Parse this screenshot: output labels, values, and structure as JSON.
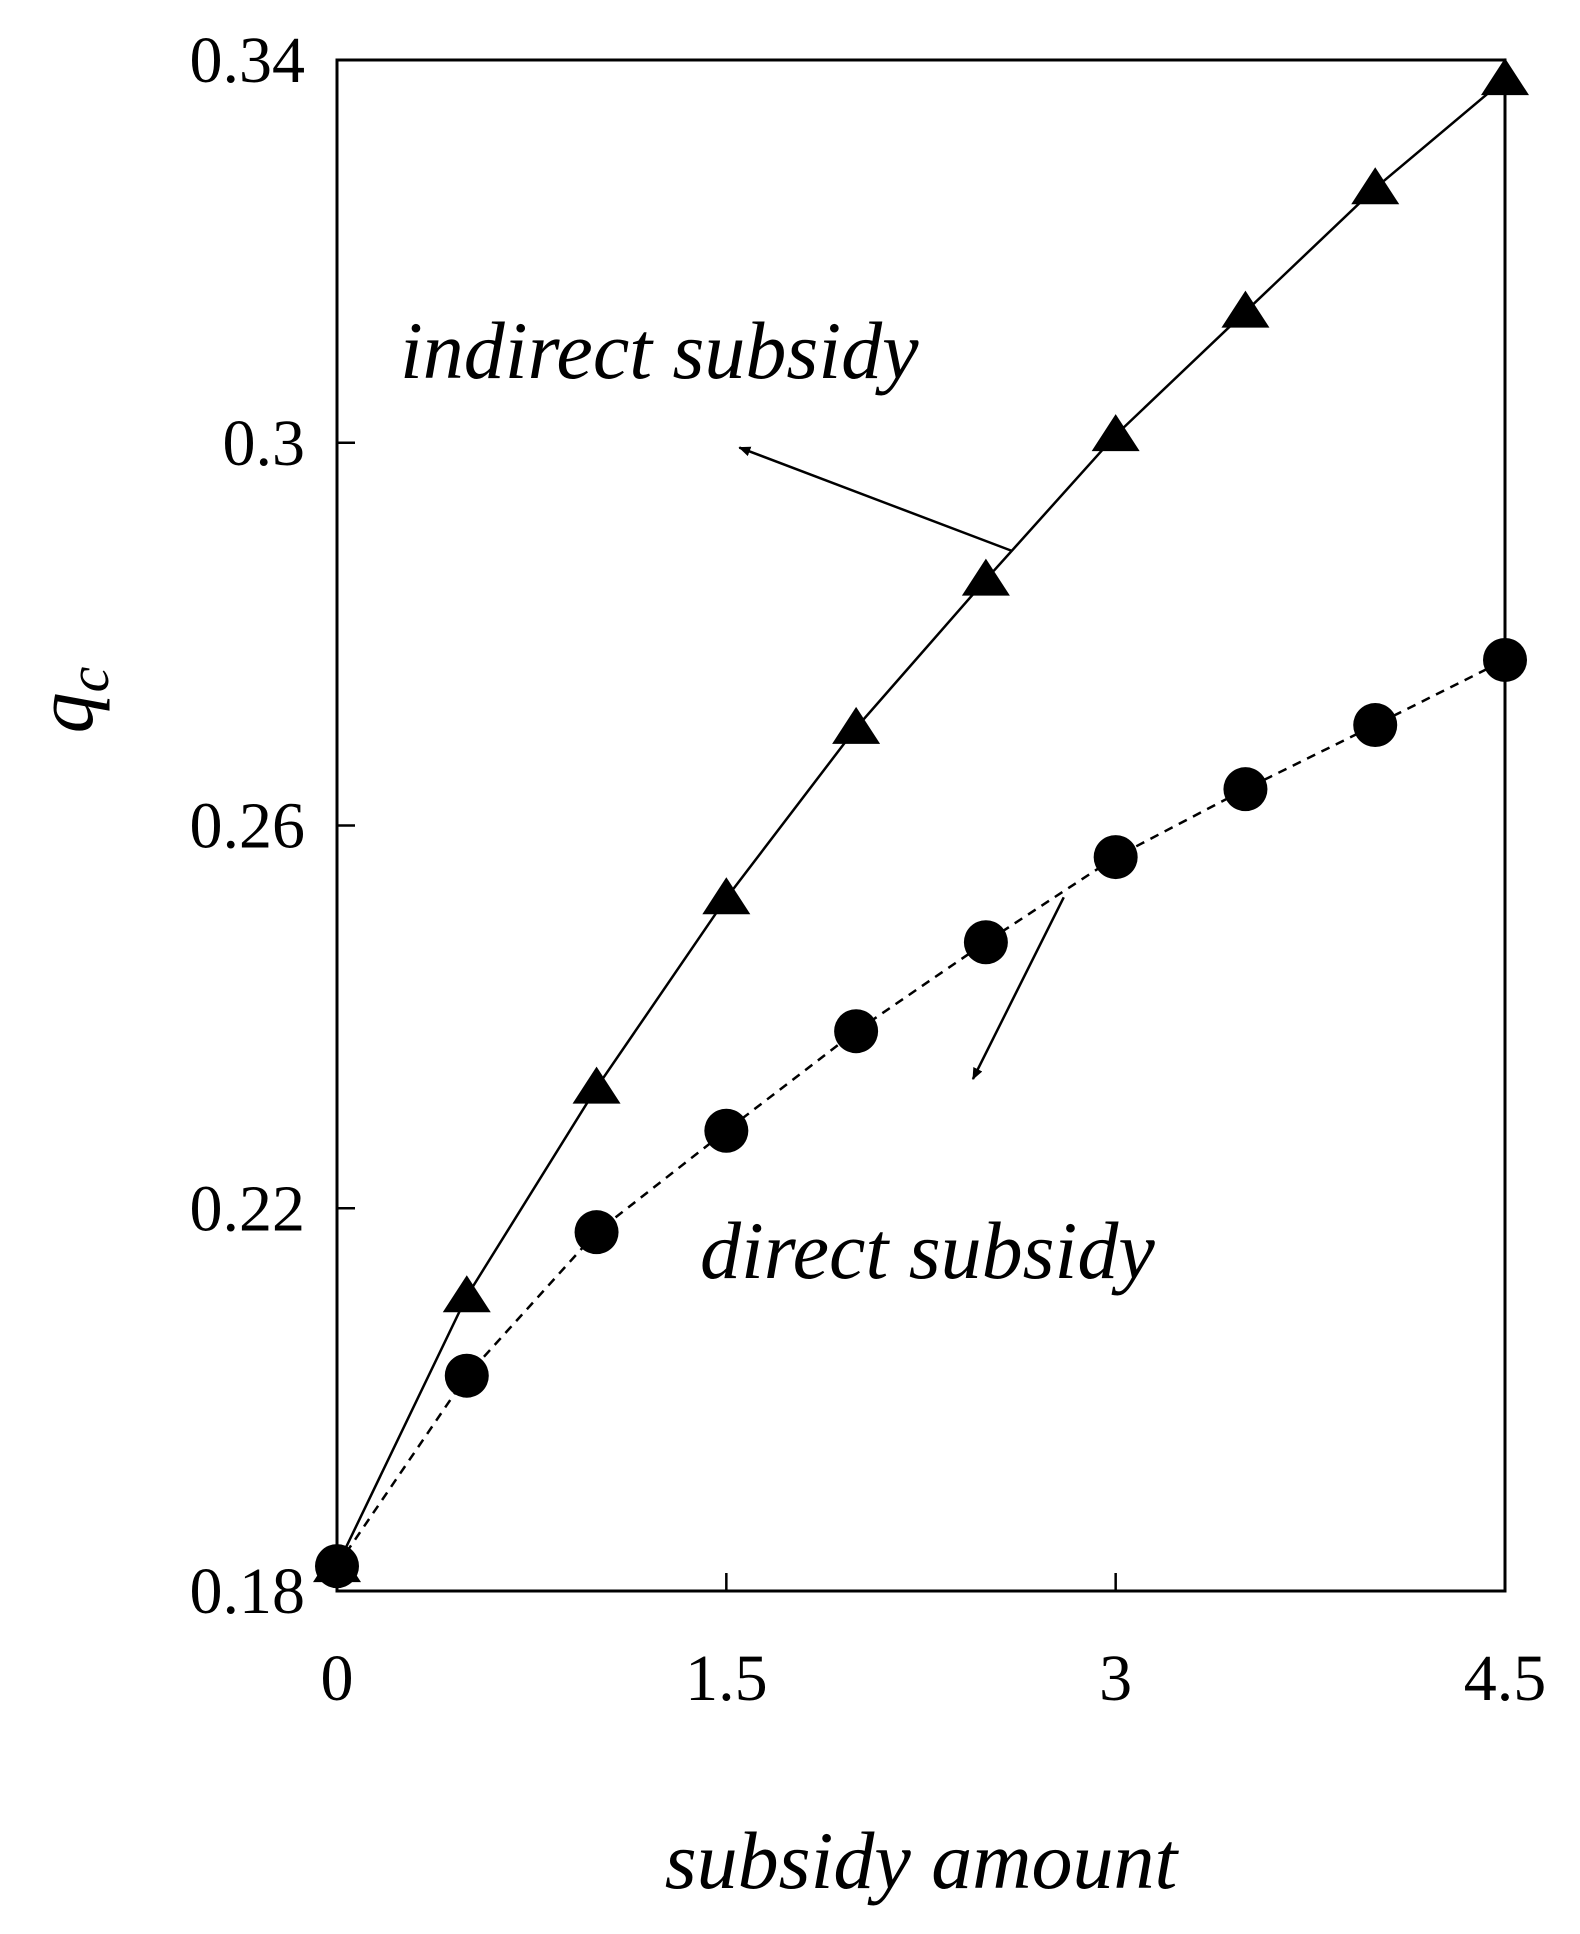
{
  "chart_data": {
    "type": "line",
    "xlabel": "subsidy amount",
    "ylabel": "q",
    "ylabel_sub": "c",
    "xlim": [
      0,
      4.5
    ],
    "ylim": [
      0.18,
      0.34
    ],
    "xticks": [
      0,
      1.5,
      3,
      4.5
    ],
    "xtick_labels": [
      "0",
      "1.5",
      "3",
      "4.5"
    ],
    "yticks": [
      0.18,
      0.22,
      0.26,
      0.3,
      0.34
    ],
    "ytick_labels": [
      "0.18",
      "0.22",
      "0.26",
      "0.3",
      "0.34"
    ],
    "grid": false,
    "legend": "none",
    "series": [
      {
        "marker": "triangle",
        "line_style": "solid",
        "color": "#000000",
        "x": [
          0,
          0.5,
          1,
          1.5,
          2,
          2.5,
          3,
          3.5,
          4,
          4.5
        ],
        "values": [
          0.1826,
          0.2108,
          0.2326,
          0.2524,
          0.2702,
          0.2857,
          0.3008,
          0.3137,
          0.3266,
          0.338
        ]
      },
      {
        "marker": "circle",
        "line_style": "dashed",
        "color": "#000000",
        "x": [
          0,
          0.5,
          1,
          1.5,
          2,
          2.5,
          3,
          3.5,
          4,
          4.5
        ],
        "values": [
          0.1826,
          0.2025,
          0.2175,
          0.2281,
          0.2385,
          0.2478,
          0.2567,
          0.2638,
          0.2705,
          0.2773
        ]
      }
    ],
    "annotations": [
      {
        "text": "indirect subsidy",
        "series_index": 0,
        "arrow_from": [
          2.6,
          0.2887
        ],
        "arrow_to": [
          1.55,
          0.2995
        ]
      },
      {
        "text": "direct subsidy",
        "series_index": 1,
        "arrow_from": [
          2.8,
          0.2525
        ],
        "arrow_to": [
          2.45,
          0.2335
        ]
      }
    ]
  }
}
